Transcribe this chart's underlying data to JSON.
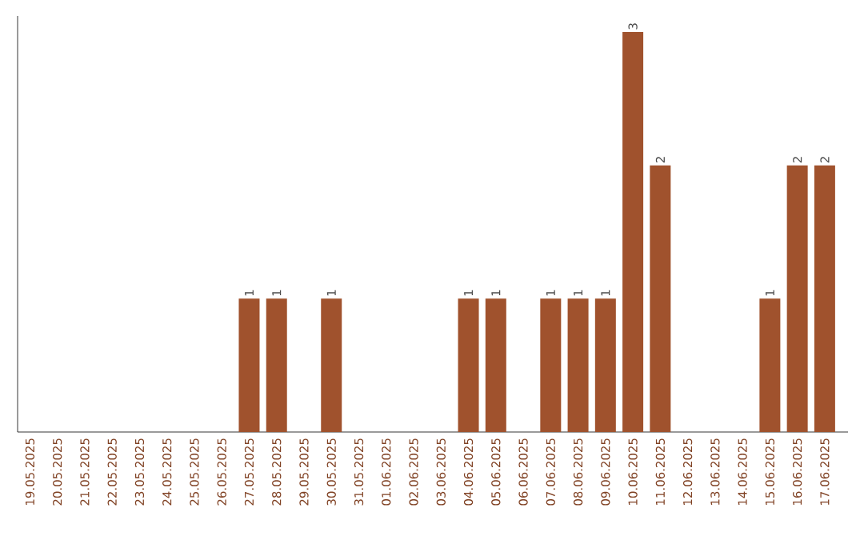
{
  "chart_data": {
    "type": "bar",
    "categories": [
      "19.05.2025",
      "20.05.2025",
      "21.05.2025",
      "22.05.2025",
      "23.05.2025",
      "24.05.2025",
      "25.05.2025",
      "26.05.2025",
      "27.05.2025",
      "28.05.2025",
      "29.05.2025",
      "30.05.2025",
      "31.05.2025",
      "01.06.2025",
      "02.06.2025",
      "03.06.2025",
      "04.06.2025",
      "05.06.2025",
      "06.06.2025",
      "07.06.2025",
      "08.06.2025",
      "09.06.2025",
      "10.06.2025",
      "11.06.2025",
      "12.06.2025",
      "13.06.2025",
      "14.06.2025",
      "15.06.2025",
      "16.06.2025",
      "17.06.2025"
    ],
    "values": [
      0,
      0,
      0,
      0,
      0,
      0,
      0,
      0,
      1,
      1,
      0,
      1,
      0,
      0,
      0,
      0,
      1,
      1,
      0,
      1,
      1,
      1,
      3,
      2,
      0,
      0,
      0,
      1,
      2,
      2
    ],
    "value_labels": [
      null,
      null,
      null,
      null,
      null,
      null,
      null,
      null,
      "1",
      "1",
      null,
      "1",
      null,
      null,
      null,
      null,
      "1",
      "1",
      null,
      "1",
      "1",
      "1",
      "3",
      "2",
      null,
      null,
      null,
      "1",
      "2",
      "2"
    ],
    "color": "#a0522d",
    "tick_labels": "x"
  }
}
